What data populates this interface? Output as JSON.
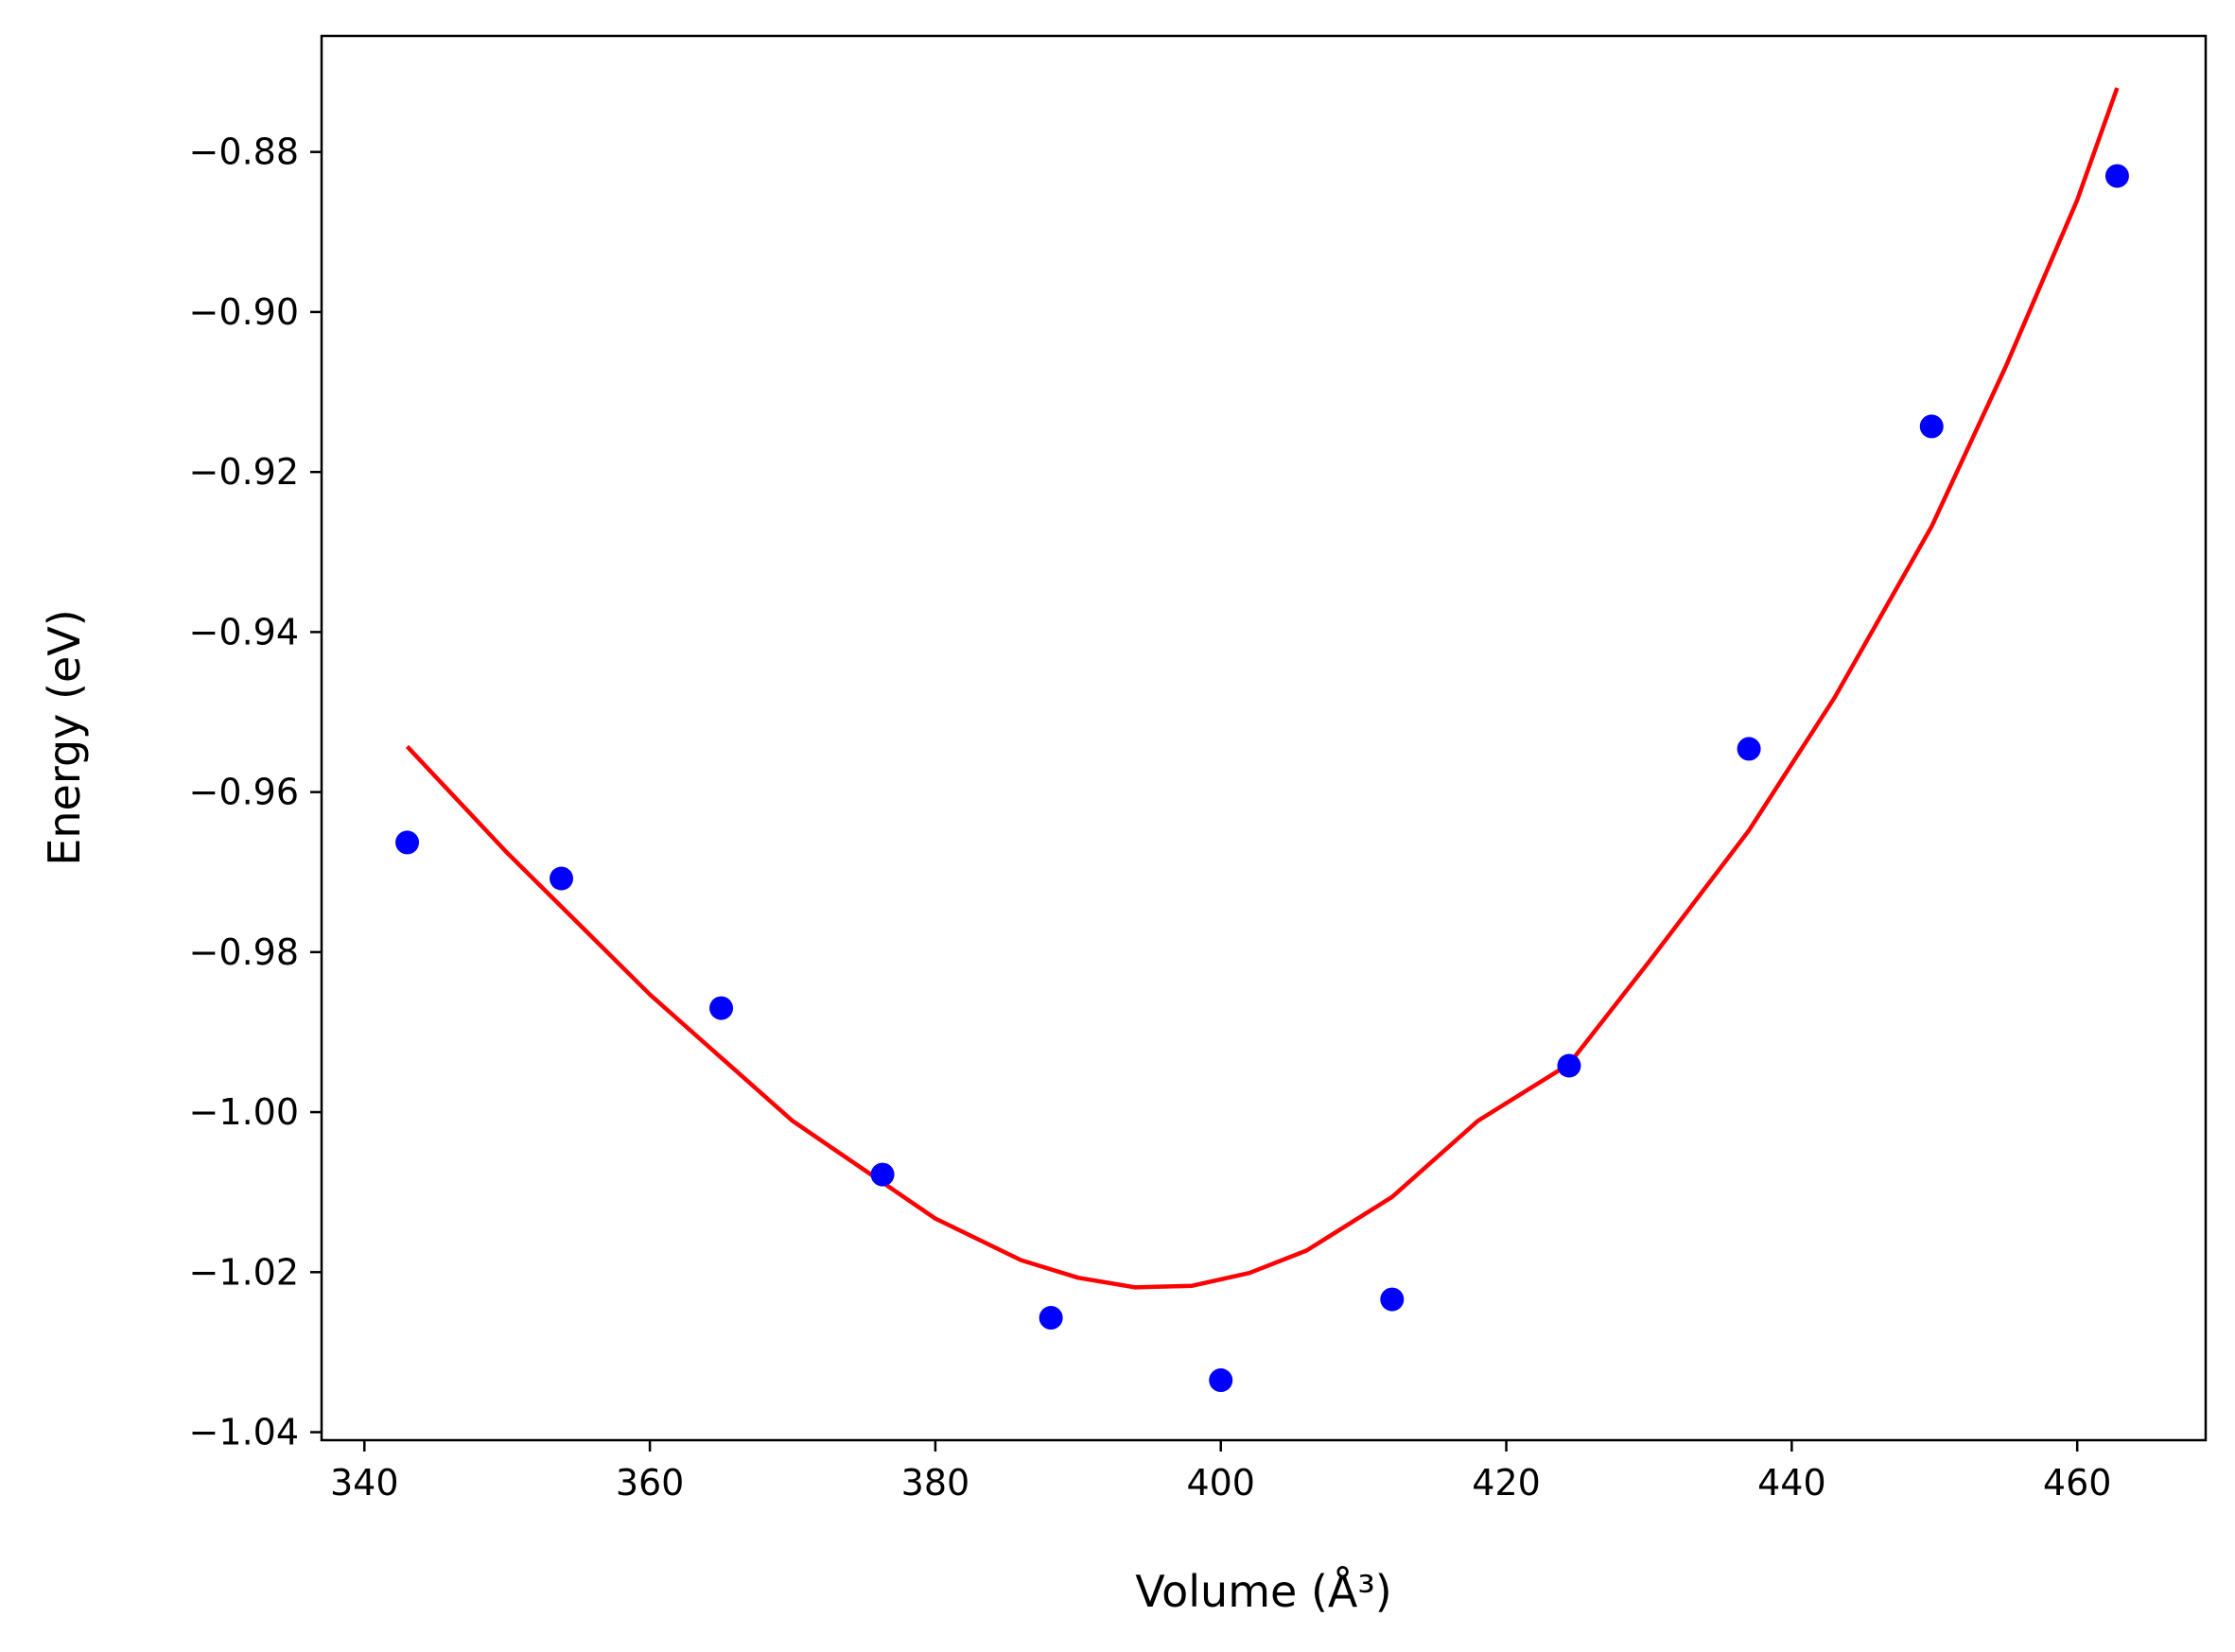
{
  "chart_data": {
    "type": "scatter",
    "title": "",
    "xlabel": "Volume (Å³)",
    "ylabel": "Energy (eV)",
    "xlim": [
      337,
      469
    ],
    "ylim": [
      -1.041,
      -0.8655
    ],
    "xticks": [
      340,
      360,
      380,
      400,
      420,
      440,
      460
    ],
    "yticks": [
      -0.88,
      -0.9,
      -0.92,
      -0.94,
      -0.96,
      -0.98,
      -1.0,
      -1.02,
      -1.04
    ],
    "xtick_labels": [
      "340",
      "360",
      "380",
      "400",
      "420",
      "440",
      "460"
    ],
    "ytick_labels": [
      "−0.88",
      "−0.90",
      "−0.92",
      "−0.94",
      "−0.96",
      "−0.98",
      "−1.00",
      "−1.02",
      "−1.04"
    ],
    "grid": false,
    "series": [
      {
        "kind": "scatter",
        "color": "#0000ff",
        "x": [
          343.0,
          353.8,
          365.0,
          376.3,
          388.1,
          400.0,
          412.0,
          424.4,
          437.0,
          449.8,
          462.8
        ],
        "y": [
          -0.9663,
          -0.9708,
          -0.987,
          -1.0078,
          -1.0257,
          -1.0335,
          -1.0234,
          -0.9942,
          -0.9546,
          -0.9143,
          -0.883
        ]
      },
      {
        "kind": "line",
        "color": "#ff0000",
        "x": [
          343.0,
          350,
          360,
          370,
          380,
          386,
          390,
          394,
          398,
          402,
          406,
          412,
          418,
          424.4,
          430,
          437,
          443,
          449.8,
          455,
          460,
          462.8
        ],
        "y": [
          -0.9543,
          -0.9676,
          -0.9853,
          -1.0011,
          -1.0133,
          -1.0185,
          -1.0207,
          -1.0219,
          -1.0217,
          -1.0201,
          -1.0173,
          -1.0106,
          -1.0011,
          -0.994,
          -0.9812,
          -0.9648,
          -0.9482,
          -0.9268,
          -0.9068,
          -0.886,
          -0.872
        ]
      }
    ]
  }
}
